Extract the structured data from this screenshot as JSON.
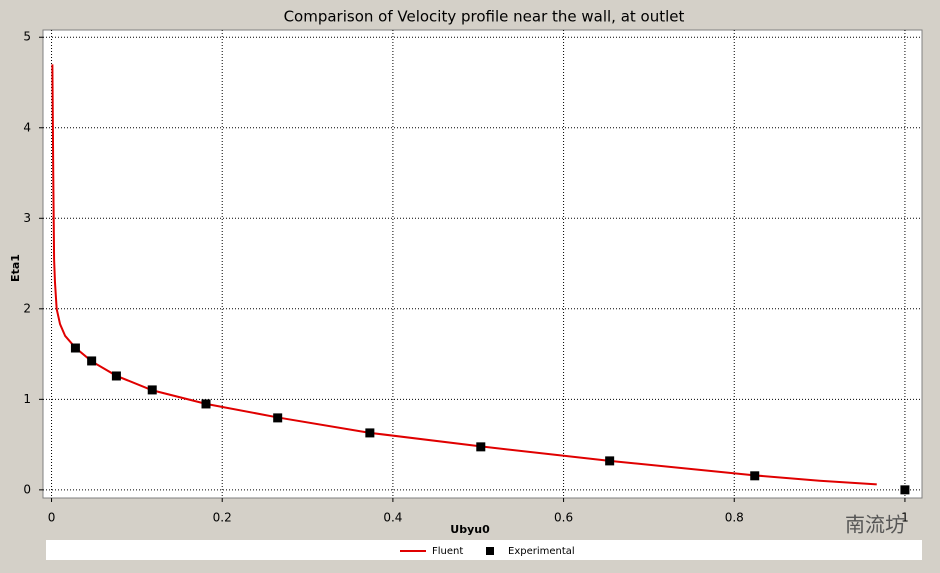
{
  "chart_data": {
    "type": "line",
    "title": "Comparison of Velocity profile near the wall, at outlet",
    "x_label": "Ubyu0",
    "y_label": "Eta1",
    "xlim": [
      -0.01,
      1.02
    ],
    "ylim": [
      -0.09,
      5.08
    ],
    "xticks": [
      0,
      0.2,
      0.4,
      0.6,
      0.8,
      1
    ],
    "yticks": [
      0,
      1,
      2,
      3,
      4,
      5
    ],
    "grid": true,
    "legend": "bottom",
    "watermark": "南流坊",
    "series": [
      {
        "name": "Fluent",
        "color": "#e00000",
        "style": "line",
        "x": [
          0.001,
          0.002,
          0.003,
          0.004,
          0.006,
          0.01,
          0.016,
          0.028,
          0.047,
          0.076,
          0.118,
          0.181,
          0.265,
          0.373,
          0.503,
          0.654,
          0.824,
          0.9,
          0.967
        ],
        "values": [
          4.7,
          3.5,
          2.55,
          2.3,
          2.0,
          1.83,
          1.7,
          1.57,
          1.42,
          1.26,
          1.1,
          0.95,
          0.8,
          0.63,
          0.48,
          0.32,
          0.16,
          0.1,
          0.06
        ]
      },
      {
        "name": "Experimental",
        "color": "#000000",
        "style": "markers",
        "x": [
          0.028,
          0.047,
          0.076,
          0.118,
          0.181,
          0.265,
          0.373,
          0.503,
          0.654,
          0.824,
          1.0
        ],
        "values": [
          1.567,
          1.424,
          1.258,
          1.104,
          0.949,
          0.795,
          0.629,
          0.475,
          0.32,
          0.155,
          0.0
        ]
      }
    ]
  }
}
